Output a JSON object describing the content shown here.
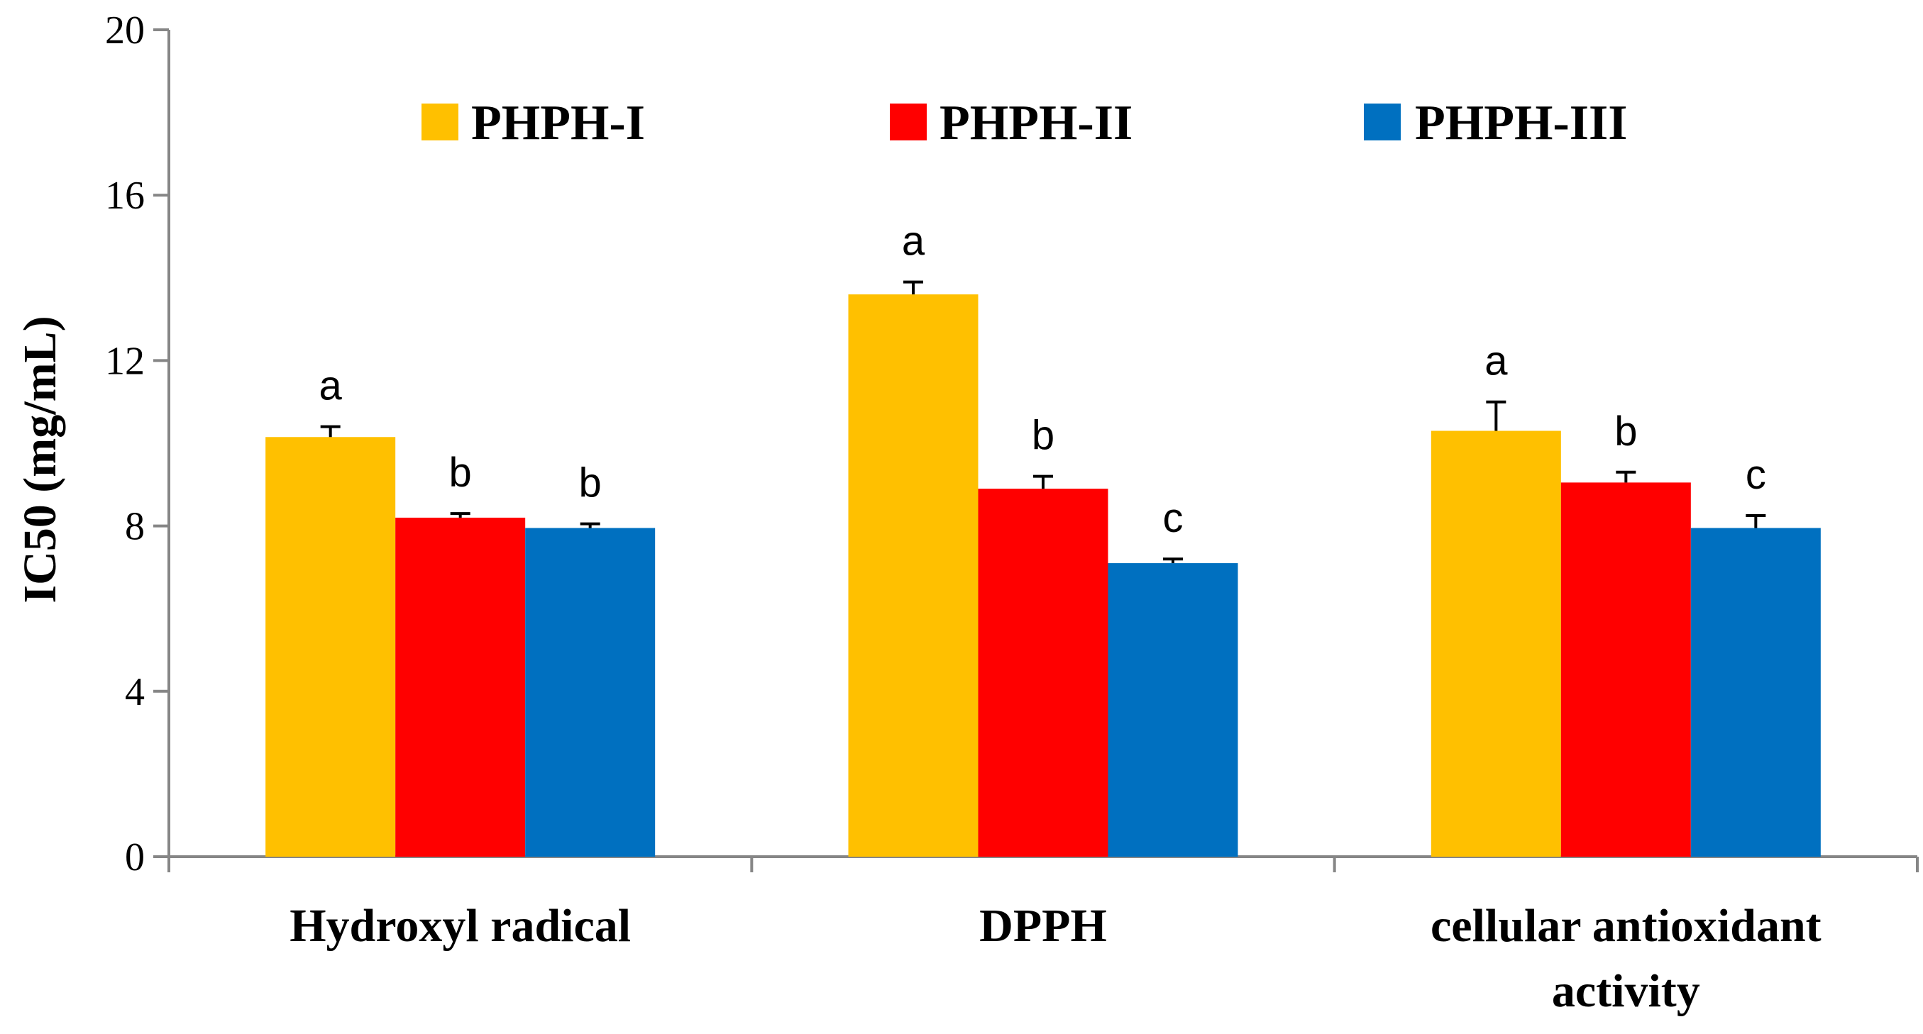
{
  "chart_data": {
    "type": "bar",
    "title": "",
    "xlabel": "",
    "ylabel": "IC50 (mg/mL)",
    "ylim": [
      0,
      20
    ],
    "yticks": [
      "0",
      "4",
      "8",
      "12",
      "16",
      "20"
    ],
    "grid": false,
    "legend_position": "top",
    "categories": [
      [
        "Hydroxyl radical"
      ],
      [
        "DPPH"
      ],
      [
        "cellular antioxidant",
        "activity"
      ]
    ],
    "series": [
      {
        "name": "PHPH-I",
        "color": "#FFC000",
        "values": [
          10.15,
          13.6,
          10.3
        ],
        "errors": [
          0.25,
          0.3,
          0.7
        ],
        "significance": [
          "a",
          "a",
          "a"
        ]
      },
      {
        "name": "PHPH-II",
        "color": "#FF0000",
        "values": [
          8.2,
          8.9,
          9.05
        ],
        "errors": [
          0.1,
          0.3,
          0.25
        ],
        "significance": [
          "b",
          "b",
          "b"
        ]
      },
      {
        "name": "PHPH-III",
        "color": "#0070C0",
        "values": [
          7.95,
          7.1,
          7.95
        ],
        "errors": [
          0.1,
          0.1,
          0.3
        ],
        "significance": [
          "b",
          "c",
          "c"
        ]
      }
    ]
  }
}
